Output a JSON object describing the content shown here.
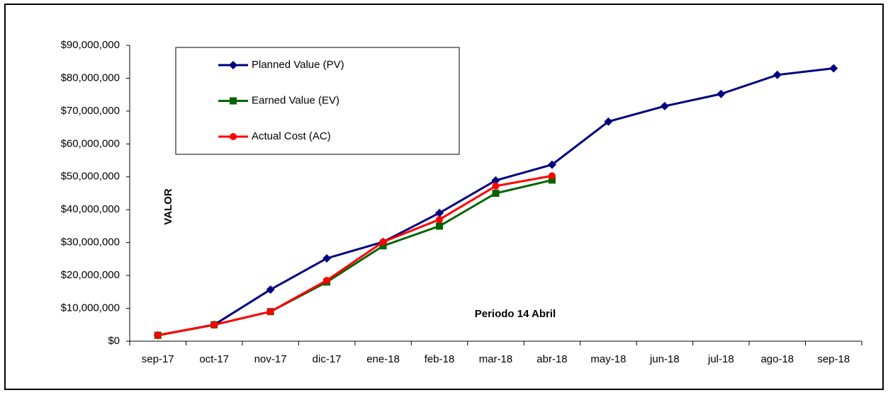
{
  "chart_data": {
    "type": "line",
    "y_label": "VALOR",
    "annotation": "Periodo  14 Abril",
    "categories": [
      "sep-17",
      "oct-17",
      "nov-17",
      "dic-17",
      "ene-18",
      "feb-18",
      "mar-18",
      "abr-18",
      "may-18",
      "jun-18",
      "jul-18",
      "ago-18",
      "sep-18"
    ],
    "series": [
      {
        "name": "Planned Value (PV)",
        "color": "#000080",
        "marker": "diamond",
        "values": [
          1800000,
          5000000,
          15700000,
          25200000,
          30200000,
          39000000,
          48900000,
          53700000,
          66800000,
          71500000,
          75200000,
          81000000,
          83000000
        ]
      },
      {
        "name": "Earned Value (EV)",
        "color": "#006400",
        "marker": "square",
        "values": [
          1800000,
          5000000,
          9000000,
          18000000,
          29000000,
          35000000,
          45000000,
          49000000,
          null,
          null,
          null,
          null,
          null
        ]
      },
      {
        "name": "Actual Cost (AC)",
        "color": "#ff0000",
        "marker": "circle",
        "values": [
          1800000,
          5000000,
          9000000,
          18500000,
          30200000,
          37000000,
          47200000,
          50300000,
          null,
          null,
          null,
          null,
          null
        ]
      }
    ],
    "ylim": [
      0,
      90000000
    ],
    "yticks": [
      {
        "value": 0,
        "label": "$0"
      },
      {
        "value": 10000000,
        "label": "$10,000,000"
      },
      {
        "value": 20000000,
        "label": "$20,000,000"
      },
      {
        "value": 30000000,
        "label": "$30,000,000"
      },
      {
        "value": 40000000,
        "label": "$40,000,000"
      },
      {
        "value": 50000000,
        "label": "$50,000,000"
      },
      {
        "value": 60000000,
        "label": "$60,000,000"
      },
      {
        "value": 70000000,
        "label": "$70,000,000"
      },
      {
        "value": 80000000,
        "label": "$80,000,000"
      },
      {
        "value": 90000000,
        "label": "$90,000,000"
      }
    ],
    "grid": false
  }
}
